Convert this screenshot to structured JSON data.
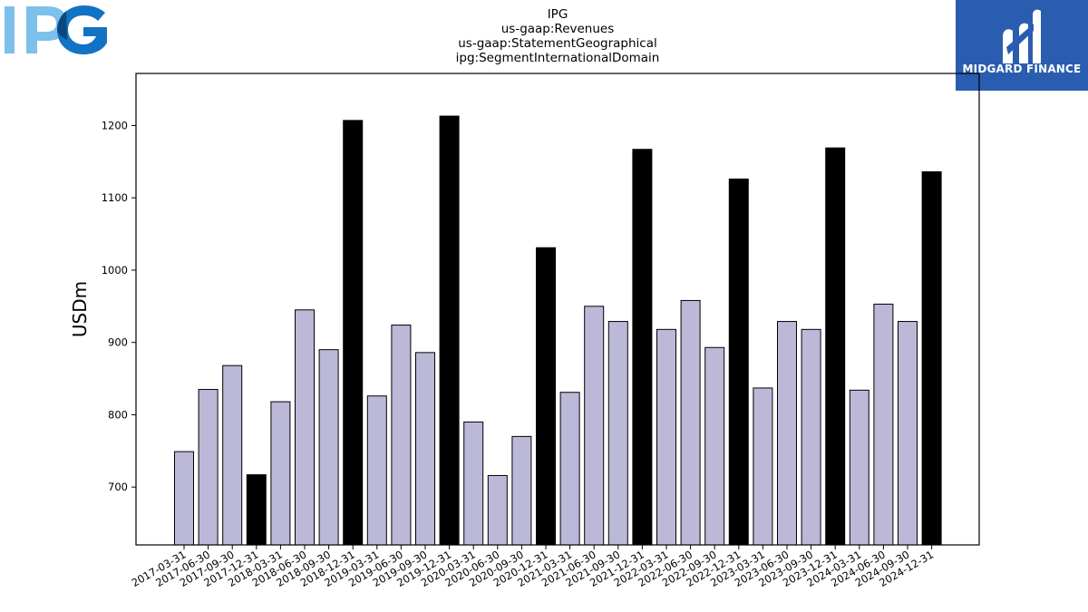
{
  "header": {
    "company_logo_icon": "ipg-logo-icon",
    "company_logo_text": "IPG",
    "brand_logo_icon": "midgard-finance-logo-icon",
    "brand_name": "MIDGARD FINANCE",
    "brand_color": "#2a5db0"
  },
  "chart_data": {
    "type": "bar",
    "title_lines": [
      "IPG",
      "us-gaap:Revenues",
      "us-gaap:StatementGeographical",
      "ipg:SegmentInternationalDomain"
    ],
    "xlabel": "",
    "ylabel": "USDm",
    "ylim": [
      620,
      1272
    ],
    "yticks": [
      700,
      800,
      900,
      1000,
      1100,
      1200
    ],
    "grid": false,
    "colors": {
      "quarter": "#bcb8d8",
      "year_end": "#000000",
      "edge": "#000000"
    },
    "categories": [
      "2017-03-31",
      "2017-06-30",
      "2017-09-30",
      "2017-12-31",
      "2018-03-31",
      "2018-06-30",
      "2018-09-30",
      "2018-12-31",
      "2019-03-31",
      "2019-06-30",
      "2019-09-30",
      "2019-12-31",
      "2020-03-31",
      "2020-06-30",
      "2020-09-30",
      "2020-12-31",
      "2021-03-31",
      "2021-06-30",
      "2021-09-30",
      "2021-12-31",
      "2022-03-31",
      "2022-06-30",
      "2022-09-30",
      "2022-12-31",
      "2023-03-31",
      "2023-06-30",
      "2023-09-30",
      "2023-12-31",
      "2024-03-31",
      "2024-06-30",
      "2024-09-30",
      "2024-12-31"
    ],
    "values": [
      749,
      835,
      868,
      717,
      818,
      945,
      890,
      1207,
      826,
      924,
      886,
      1213,
      790,
      716,
      770,
      1031,
      831,
      950,
      929,
      1167,
      918,
      958,
      893,
      1126,
      837,
      929,
      918,
      1169,
      834,
      953,
      929,
      1136
    ],
    "highlight": [
      false,
      false,
      false,
      true,
      false,
      false,
      false,
      true,
      false,
      false,
      false,
      true,
      false,
      false,
      false,
      true,
      false,
      false,
      false,
      true,
      false,
      false,
      false,
      true,
      false,
      false,
      false,
      true,
      false,
      false,
      false,
      true
    ]
  }
}
